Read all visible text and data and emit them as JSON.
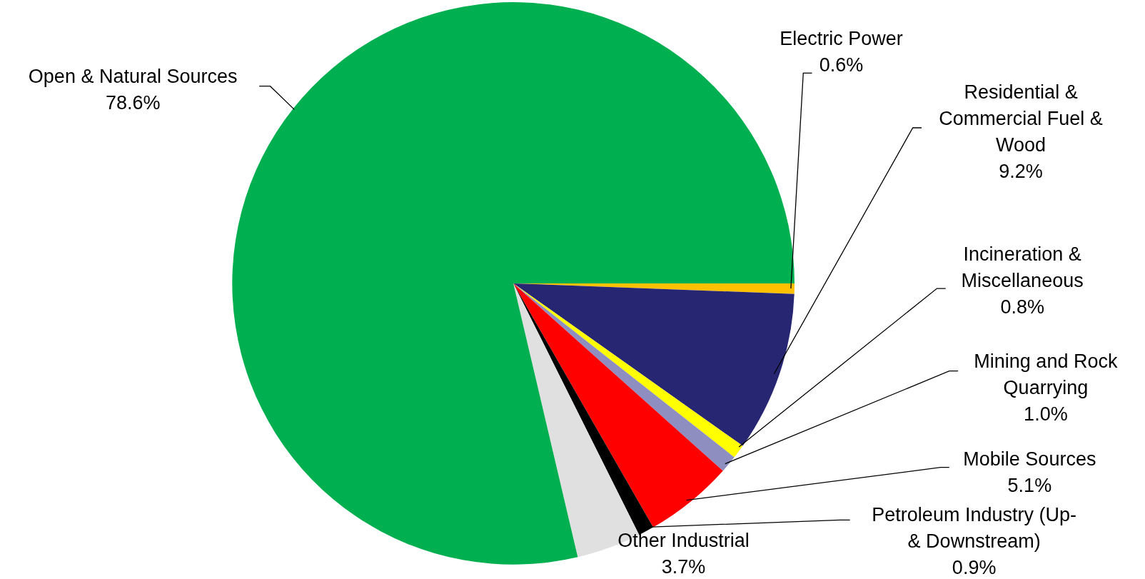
{
  "chart_data": {
    "type": "pie",
    "categories": [
      "Electric Power",
      "Residential & Commercial Fuel & Wood",
      "Incineration & Miscellaneous",
      "Mining and Rock Quarrying",
      "Mobile Sources",
      "Petroleum Industry (Up- & Downstream)",
      "Other Industrial",
      "Open & Natural Sources"
    ],
    "values": [
      0.6,
      9.2,
      0.8,
      1.0,
      5.1,
      0.9,
      3.7,
      78.6
    ],
    "value_labels": [
      "0.6%",
      "9.2%",
      "0.8%",
      "1.0%",
      "5.1%",
      "0.9%",
      "3.7%",
      "78.6%"
    ],
    "colors": [
      "#ffc000",
      "#262673",
      "#ffff00",
      "#8e8fc0",
      "#ff0000",
      "#000000",
      "#e0e0e0",
      "#00b050"
    ]
  }
}
